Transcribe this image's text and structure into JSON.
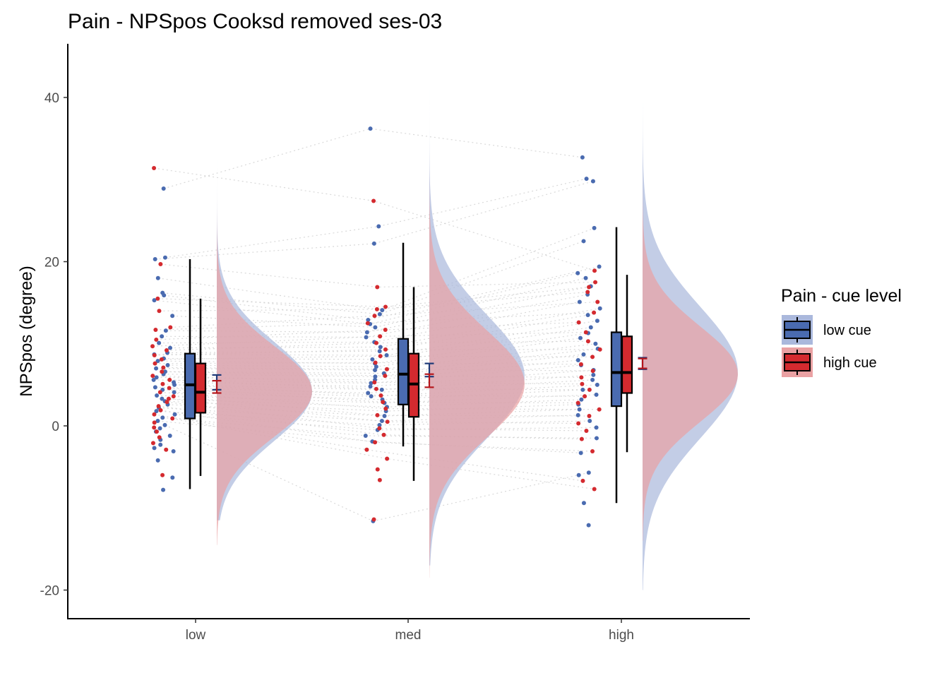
{
  "chart_data": {
    "type": "raincloud",
    "title": "Pain  - NPSpos Cooksd removed  ses-03",
    "ylabel": "NPSpos (degree)",
    "xlabel": "",
    "ylim": [
      -23.5,
      46.5
    ],
    "yticks": [
      -20,
      0,
      20,
      40
    ],
    "categories": [
      "low",
      "med",
      "high"
    ],
    "grid": false,
    "legend": {
      "title": "Pain  - cue level",
      "position": "right",
      "entries": [
        "low cue",
        "high cue"
      ]
    },
    "colors": {
      "low cue": "#4a6bb0",
      "high cue": "#d42a2f",
      "low cue fill": "#aab8dc",
      "high cue fill": "#eaa1a3",
      "connector": "#cfcfcf"
    },
    "series": [
      {
        "name": "low cue",
        "boxplots": [
          {
            "category": "low",
            "whisker_low": -7.7,
            "q1": 0.9,
            "median": 5.0,
            "q3": 8.8,
            "whisker_high": 20.3
          },
          {
            "category": "med",
            "whisker_low": -2.5,
            "q1": 2.6,
            "median": 6.3,
            "q3": 10.6,
            "whisker_high": 22.3
          },
          {
            "category": "high",
            "whisker_low": -9.4,
            "q1": 2.4,
            "median": 6.5,
            "q3": 11.4,
            "whisker_high": 24.2
          }
        ],
        "mean_ci": [
          {
            "category": "low",
            "mean": 5.3,
            "lower": 4.4,
            "upper": 6.2
          },
          {
            "category": "med",
            "mean": 6.8,
            "lower": 6.0,
            "upper": 7.6
          },
          {
            "category": "high",
            "mean": 7.6,
            "lower": 6.9,
            "upper": 8.3
          }
        ],
        "density": [
          {
            "category": "low",
            "mean": 4.2,
            "sd": 6.0,
            "min": -11.5,
            "max": 34.5
          },
          {
            "category": "med",
            "mean": 6.0,
            "sd": 7.5,
            "min": -17.0,
            "max": 43.0
          },
          {
            "category": "high",
            "mean": 6.5,
            "sd": 8.0,
            "min": -20.0,
            "max": 40.5
          }
        ],
        "points": [
          {
            "category": "low",
            "values": [
              28.9,
              20.5,
              20.3,
              18.0,
              16.2,
              15.9,
              15.3,
              13.4,
              11.6,
              10.9,
              10.1,
              9.5,
              8.9,
              8.7,
              8.2,
              7.9,
              7.4,
              7.0,
              6.6,
              6.3,
              5.9,
              5.6,
              5.3,
              5.0,
              4.7,
              4.4,
              4.1,
              3.7,
              3.3,
              3.0,
              2.6,
              2.2,
              1.8,
              1.4,
              1.0,
              0.6,
              0.1,
              -0.3,
              -0.7,
              -1.2,
              -1.7,
              -2.3,
              -2.7,
              -3.1,
              -4.2,
              -6.3,
              -7.8
            ]
          },
          {
            "category": "med",
            "values": [
              36.2,
              24.3,
              22.2,
              14.1,
              13.6,
              12.9,
              12.4,
              12.0,
              11.4,
              10.8,
              10.2,
              9.6,
              9.1,
              8.6,
              8.1,
              7.6,
              7.2,
              6.8,
              6.4,
              6.0,
              5.6,
              5.2,
              4.8,
              4.4,
              4.0,
              3.6,
              3.2,
              2.8,
              2.3,
              1.8,
              1.2,
              0.6,
              0.1,
              -0.5,
              -1.2,
              -1.9,
              -11.6
            ]
          },
          {
            "category": "high",
            "values": [
              32.7,
              30.1,
              29.8,
              24.1,
              22.5,
              19.4,
              18.6,
              18.0,
              17.0,
              16.0,
              15.1,
              14.3,
              13.5,
              12.8,
              12.0,
              11.3,
              10.7,
              10.0,
              9.4,
              8.7,
              8.0,
              7.4,
              6.8,
              6.2,
              5.6,
              5.0,
              4.4,
              3.8,
              3.2,
              2.6,
              2.0,
              1.3,
              0.6,
              -0.2,
              -1.5,
              -3.3,
              -5.7,
              -6.0,
              -9.4,
              -12.1
            ]
          }
        ]
      },
      {
        "name": "high cue",
        "boxplots": [
          {
            "category": "low",
            "whisker_low": -6.1,
            "q1": 1.6,
            "median": 4.1,
            "q3": 7.6,
            "whisker_high": 15.5
          },
          {
            "category": "med",
            "whisker_low": -6.7,
            "q1": 1.1,
            "median": 5.1,
            "q3": 8.8,
            "whisker_high": 16.9
          },
          {
            "category": "high",
            "whisker_low": -3.2,
            "q1": 4.0,
            "median": 6.5,
            "q3": 10.9,
            "whisker_high": 18.4
          }
        ],
        "mean_ci": [
          {
            "category": "low",
            "mean": 4.8,
            "lower": 4.0,
            "upper": 5.5
          },
          {
            "category": "med",
            "mean": 5.5,
            "lower": 4.7,
            "upper": 6.3
          },
          {
            "category": "high",
            "mean": 7.6,
            "lower": 7.0,
            "upper": 8.2
          }
        ],
        "density": [
          {
            "category": "low",
            "mean": 4.2,
            "sd": 5.5,
            "min": -14.5,
            "max": 36.5
          },
          {
            "category": "med",
            "mean": 5.1,
            "sd": 6.5,
            "min": -18.5,
            "max": 35.0
          },
          {
            "category": "high",
            "mean": 6.3,
            "sd": 5.8,
            "min": -14.0,
            "max": 34.0
          }
        ],
        "points": [
          {
            "category": "low",
            "values": [
              31.4,
              19.7,
              15.5,
              14.0,
              12.0,
              11.7,
              10.5,
              9.7,
              9.2,
              8.6,
              8.1,
              7.6,
              7.1,
              6.6,
              6.1,
              5.6,
              5.1,
              4.6,
              4.1,
              3.6,
              3.3,
              2.9,
              2.4,
              1.9,
              1.4,
              0.9,
              0.4,
              -0.2,
              -0.7,
              -1.4,
              -2.1,
              -2.9,
              -6.0
            ]
          },
          {
            "category": "med",
            "values": [
              27.4,
              16.9,
              14.5,
              14.2,
              13.4,
              12.5,
              11.7,
              10.9,
              10.1,
              9.3,
              8.5,
              7.7,
              6.9,
              6.1,
              5.3,
              4.5,
              3.7,
              2.9,
              2.1,
              1.3,
              0.5,
              -0.3,
              -1.1,
              -2.0,
              -2.9,
              -4.0,
              -5.3,
              -6.6,
              -11.4
            ]
          },
          {
            "category": "high",
            "values": [
              18.9,
              17.5,
              16.9,
              16.3,
              15.1,
              13.8,
              12.6,
              11.4,
              10.3,
              9.3,
              8.4,
              7.5,
              6.7,
              5.9,
              5.1,
              4.4,
              3.6,
              2.8,
              2.0,
              1.2,
              0.3,
              -0.6,
              -1.6,
              -3.1,
              -6.7,
              -7.7
            ]
          }
        ]
      }
    ]
  }
}
